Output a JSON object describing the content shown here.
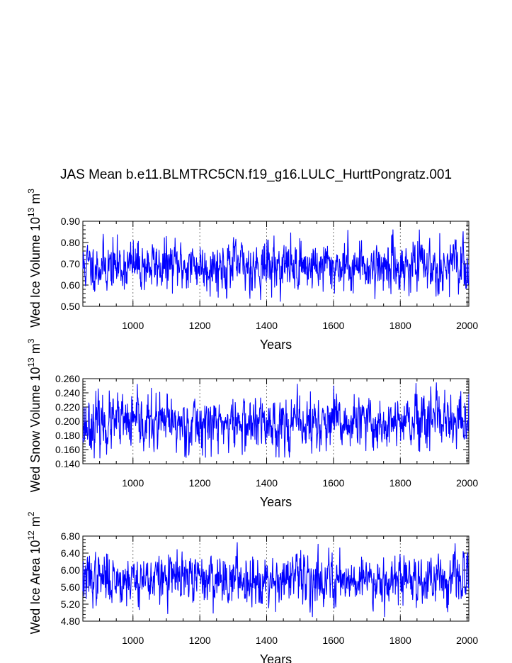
{
  "title": "JAS Mean b.e11.BLMTRC5CN.f19_g16.LULC_HurttPongratz.001",
  "colors": {
    "series": "#0000ff",
    "axis": "#000000",
    "grid": "#555555"
  },
  "chart_data": [
    {
      "type": "line",
      "xlabel": "Years",
      "ylabel": {
        "main": "Wed Ice Volume 10",
        "exp1": "13",
        "unit": " m",
        "exp2": "3"
      },
      "xlim": [
        850,
        2005
      ],
      "ylim": [
        0.5,
        0.9
      ],
      "xticks": [
        1000,
        1200,
        1400,
        1600,
        1800,
        2000
      ],
      "yticks": [
        0.5,
        0.6,
        0.7,
        0.8,
        0.9
      ],
      "yticklabels": [
        "0.50",
        "0.60",
        "0.70",
        "0.80",
        "0.90"
      ],
      "series": [
        {
          "name": "Wed Ice Volume",
          "x_start": 850,
          "x_end": 2005,
          "mean": 0.69,
          "sd": 0.055,
          "min": 0.52,
          "max": 0.86,
          "seed": 11,
          "values": []
        }
      ]
    },
    {
      "type": "line",
      "xlabel": "Years",
      "ylabel": {
        "main": "Wed Snow Volume 10",
        "exp1": "13",
        "unit": " m",
        "exp2": "3"
      },
      "xlim": [
        850,
        2005
      ],
      "ylim": [
        0.14,
        0.26
      ],
      "xticks": [
        1000,
        1200,
        1400,
        1600,
        1800,
        2000
      ],
      "yticks": [
        0.14,
        0.16,
        0.18,
        0.2,
        0.22,
        0.24,
        0.26
      ],
      "yticklabels": [
        "0.140",
        "0.160",
        "0.180",
        "0.200",
        "0.220",
        "0.240",
        "0.260"
      ],
      "series": [
        {
          "name": "Wed Snow Volume",
          "x_start": 850,
          "x_end": 2005,
          "mean": 0.196,
          "sd": 0.018,
          "min": 0.148,
          "max": 0.255,
          "seed": 23,
          "values": []
        }
      ]
    },
    {
      "type": "line",
      "xlabel": "Years",
      "ylabel": {
        "main": "Wed Ice Area 10",
        "exp1": "12",
        "unit": " m",
        "exp2": "2"
      },
      "xlim": [
        850,
        2005
      ],
      "ylim": [
        4.8,
        6.8
      ],
      "xticks": [
        1000,
        1200,
        1400,
        1600,
        1800,
        2000
      ],
      "yticks": [
        4.8,
        5.2,
        5.6,
        6.0,
        6.4,
        6.8
      ],
      "yticklabels": [
        "4.80",
        "5.20",
        "5.60",
        "6.00",
        "6.40",
        "6.80"
      ],
      "series": [
        {
          "name": "Wed Ice Area",
          "x_start": 850,
          "x_end": 2005,
          "mean": 5.8,
          "sd": 0.27,
          "min": 4.9,
          "max": 6.65,
          "seed": 37,
          "values": []
        }
      ]
    }
  ]
}
